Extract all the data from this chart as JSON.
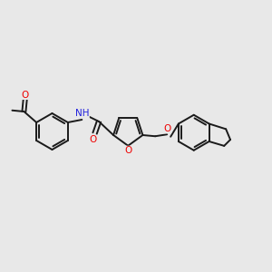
{
  "bg_color": "#e8e8e8",
  "bond_color": "#1a1a1a",
  "bond_width": 1.4,
  "O_color": "#ee0000",
  "N_color": "#2020dd",
  "H_color": "#4a9090",
  "font_size": 7.5,
  "fig_size": [
    3.0,
    3.0
  ],
  "dpi": 100,
  "xlim": [
    0,
    12
  ],
  "ylim": [
    0,
    10
  ]
}
